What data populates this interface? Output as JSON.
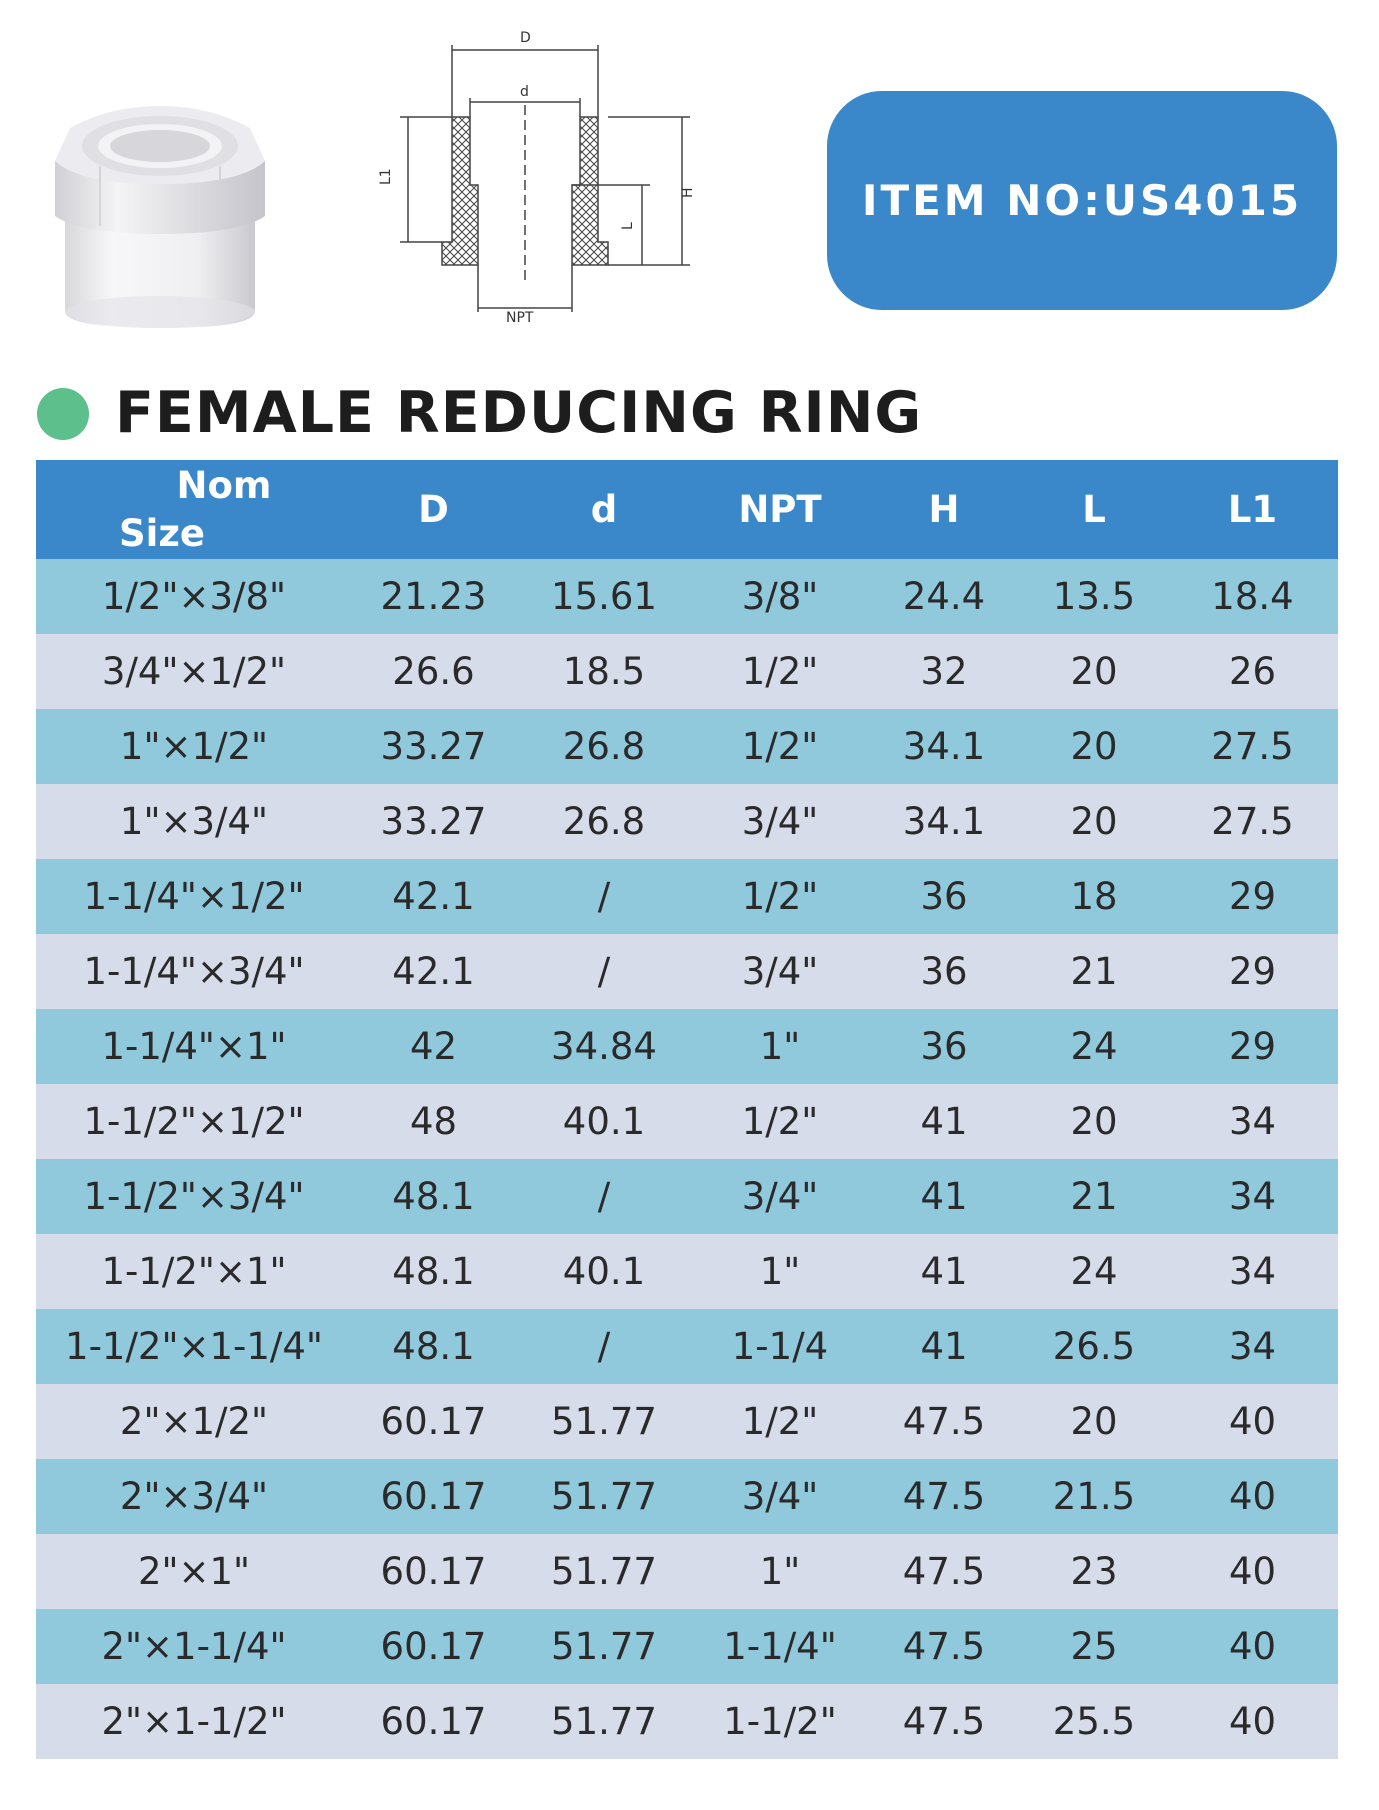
{
  "item_box": {
    "text": "ITEM NO:US4015"
  },
  "title": "FEMALE REDUCING RING",
  "drawing_labels": {
    "D": "D",
    "d": "d",
    "L1": "L1",
    "L": "L",
    "H": "H",
    "NPT": "NPT"
  },
  "colors": {
    "header_blue": "#3a88c9",
    "row_light_blue": "#90c8dc",
    "row_gray": "#d6dce9",
    "title_dot_green": "#5cbf8c"
  },
  "table": {
    "headers": {
      "nom_line1": "Nom",
      "nom_line2": "Size",
      "D": "D",
      "d": "d",
      "NPT": "NPT",
      "H": "H",
      "L": "L",
      "L1": "L1"
    },
    "rows": [
      [
        "1/2\"×3/8\"",
        "21.23",
        "15.61",
        "3/8\"",
        "24.4",
        "13.5",
        "18.4"
      ],
      [
        "3/4\"×1/2\"",
        "26.6",
        "18.5",
        "1/2\"",
        "32",
        "20",
        "26"
      ],
      [
        "1\"×1/2\"",
        "33.27",
        "26.8",
        "1/2\"",
        "34.1",
        "20",
        "27.5"
      ],
      [
        "1\"×3/4\"",
        "33.27",
        "26.8",
        "3/4\"",
        "34.1",
        "20",
        "27.5"
      ],
      [
        "1-1/4\"×1/2\"",
        "42.1",
        "/",
        "1/2\"",
        "36",
        "18",
        "29"
      ],
      [
        "1-1/4\"×3/4\"",
        "42.1",
        "/",
        "3/4\"",
        "36",
        "21",
        "29"
      ],
      [
        "1-1/4\"×1\"",
        "42",
        "34.84",
        "1\"",
        "36",
        "24",
        "29"
      ],
      [
        "1-1/2\"×1/2\"",
        "48",
        "40.1",
        "1/2\"",
        "41",
        "20",
        "34"
      ],
      [
        "1-1/2\"×3/4\"",
        "48.1",
        "/",
        "3/4\"",
        "41",
        "21",
        "34"
      ],
      [
        "1-1/2\"×1\"",
        "48.1",
        "40.1",
        "1\"",
        "41",
        "24",
        "34"
      ],
      [
        "1-1/2\"×1-1/4\"",
        "48.1",
        "/",
        "1-1/4",
        "41",
        "26.5",
        "34"
      ],
      [
        "2\"×1/2\"",
        "60.17",
        "51.77",
        "1/2\"",
        "47.5",
        "20",
        "40"
      ],
      [
        "2\"×3/4\"",
        "60.17",
        "51.77",
        "3/4\"",
        "47.5",
        "21.5",
        "40"
      ],
      [
        "2\"×1\"",
        "60.17",
        "51.77",
        "1\"",
        "47.5",
        "23",
        "40"
      ],
      [
        "2\"×1-1/4\"",
        "60.17",
        "51.77",
        "1-1/4\"",
        "47.5",
        "25",
        "40"
      ],
      [
        "2\"×1-1/2\"",
        "60.17",
        "51.77",
        "1-1/2\"",
        "47.5",
        "25.5",
        "40"
      ]
    ]
  }
}
